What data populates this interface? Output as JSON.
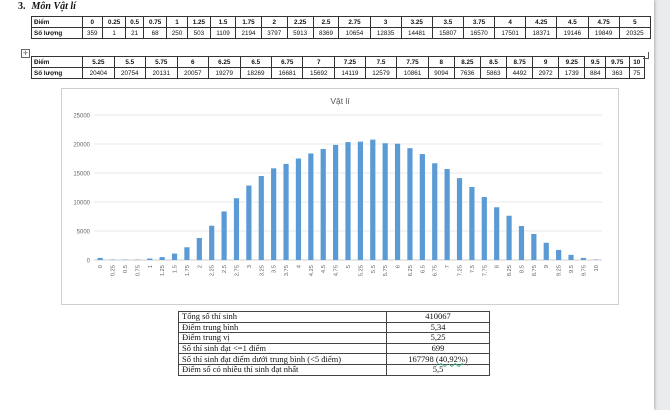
{
  "heading": {
    "number": "3.",
    "title": "Môn Vật lí"
  },
  "score_table": {
    "row_label_score": "Điểm",
    "row_label_count": "Số lượng",
    "part1": {
      "scores": [
        "0",
        "0.25",
        "0.5",
        "0.75",
        "1",
        "1.25",
        "1.5",
        "1.75",
        "2",
        "2.25",
        "2.5",
        "2.75",
        "3",
        "3.25",
        "3.5",
        "3.75",
        "4",
        "4.25",
        "4.5",
        "4.75",
        "5"
      ],
      "counts": [
        "359",
        "1",
        "21",
        "68",
        "250",
        "503",
        "1109",
        "2194",
        "3797",
        "5913",
        "8369",
        "10654",
        "12835",
        "14481",
        "15807",
        "16570",
        "17501",
        "18371",
        "19146",
        "19849",
        "20325"
      ]
    },
    "part2": {
      "scores": [
        "5.25",
        "5.5",
        "5.75",
        "6",
        "6.25",
        "6.5",
        "6.75",
        "7",
        "7.25",
        "7.5",
        "7.75",
        "8",
        "8.25",
        "8.5",
        "8.75",
        "9",
        "9.25",
        "9.5",
        "9.75",
        "10"
      ],
      "counts": [
        "20404",
        "20754",
        "20131",
        "20057",
        "19279",
        "18269",
        "16681",
        "15692",
        "14119",
        "12579",
        "10861",
        "9094",
        "7636",
        "5863",
        "4492",
        "2972",
        "1739",
        "884",
        "363",
        "75"
      ]
    }
  },
  "chart_data": {
    "type": "bar",
    "title": "Vật lí",
    "categories": [
      "0",
      "0.25",
      "0.5",
      "0.75",
      "1",
      "1.25",
      "1.5",
      "1.75",
      "2",
      "2.25",
      "2.5",
      "2.75",
      "3",
      "3.25",
      "3.5",
      "3.75",
      "4",
      "4.25",
      "4.5",
      "4.75",
      "5",
      "5.25",
      "5.5",
      "5.75",
      "6",
      "6.25",
      "6.5",
      "6.75",
      "7",
      "7.25",
      "7.5",
      "7.75",
      "8",
      "8.25",
      "8.5",
      "8.75",
      "9",
      "9.25",
      "9.5",
      "9.75",
      "10"
    ],
    "values": [
      359,
      1,
      21,
      68,
      250,
      503,
      1109,
      2194,
      3797,
      5913,
      8369,
      10654,
      12835,
      14481,
      15807,
      16570,
      17501,
      18371,
      19146,
      19849,
      20325,
      20404,
      20754,
      20131,
      20057,
      19279,
      18269,
      16681,
      15692,
      14119,
      12579,
      10861,
      9094,
      7636,
      5863,
      4492,
      2972,
      1739,
      884,
      363,
      75
    ],
    "ylim": [
      0,
      25000
    ],
    "yticks": [
      0,
      5000,
      10000,
      15000,
      20000,
      25000
    ],
    "grid": true,
    "legend": "none",
    "bar_color": "#5b9bd5",
    "xlabel": "",
    "ylabel": ""
  },
  "stats": [
    {
      "label": "Tổng số thí sinh",
      "value": "410067"
    },
    {
      "label": "Điểm trung bình",
      "value": "5,34"
    },
    {
      "label": "Điểm trung vị",
      "value": "5,25"
    },
    {
      "label": "Số thí sinh đạt <=1 điểm",
      "value": "699"
    },
    {
      "label": "Số thí sinh đạt điểm dưới trung bình (<5 điểm)",
      "value_main": "167798",
      "value_paren": "(40,92%)"
    },
    {
      "label": "Điểm số có nhiều thí sinh đạt nhất",
      "value": "5,5"
    }
  ],
  "table_anchor_icon": "move-handle-icon"
}
